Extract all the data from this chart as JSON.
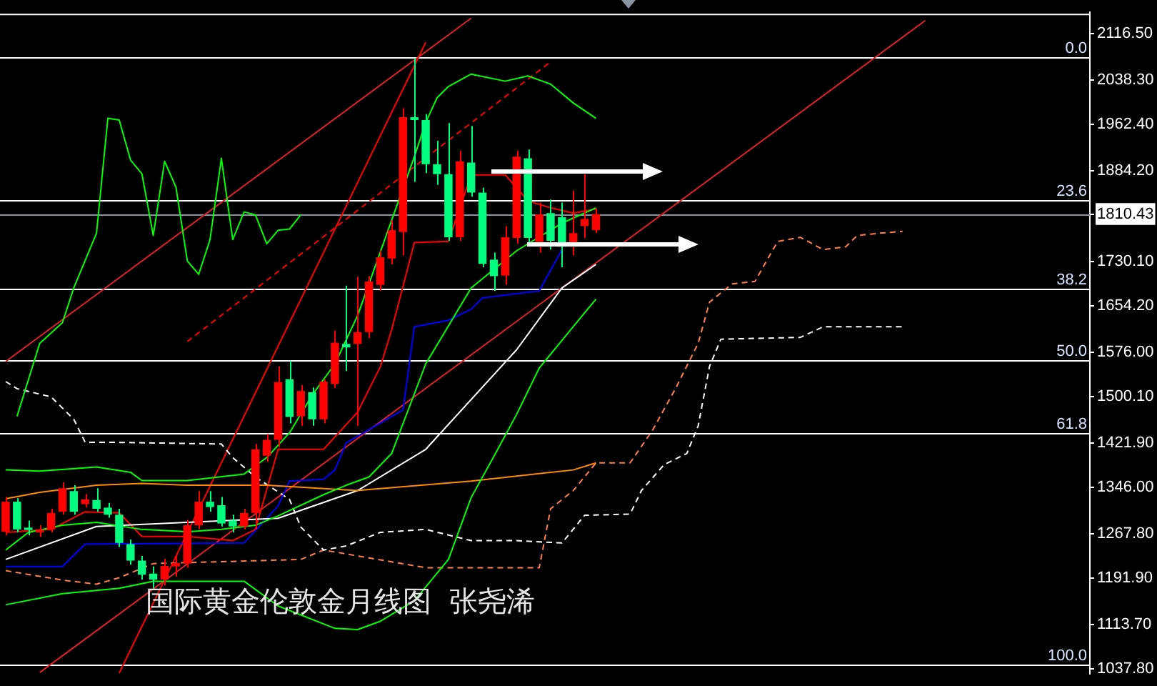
{
  "chart_data": {
    "type": "candlestick",
    "title": "国际黄金伦敦金月线图  张尧浠",
    "categories": [
      null,
      null,
      null,
      null,
      null,
      null,
      null,
      null,
      null,
      null,
      null,
      null,
      null,
      null,
      null,
      null,
      null,
      null,
      null,
      null,
      null,
      null,
      null,
      null,
      null,
      null,
      null,
      null,
      null,
      null,
      null,
      null,
      null,
      null,
      null,
      null,
      null,
      null,
      null,
      null,
      null,
      null,
      null,
      null,
      null,
      null,
      null,
      null,
      null,
      null,
      null,
      null,
      null,
      null,
      null,
      null,
      null,
      null,
      null,
      null,
      null,
      null,
      null,
      null,
      null,
      null,
      null,
      null,
      null,
      null,
      null,
      null,
      null,
      null,
      null,
      null,
      null,
      null,
      null,
      null,
      null,
      null,
      null,
      null,
      null,
      null,
      null,
      null,
      null,
      null,
      null,
      null,
      null,
      null,
      null,
      null
    ],
    "ohlc": [
      [
        1271,
        1330,
        1265,
        1322
      ],
      [
        1322,
        1328,
        1270,
        1275
      ],
      [
        1278,
        1290,
        1265,
        1274
      ],
      [
        1270,
        1282,
        1262,
        1275
      ],
      [
        1275,
        1310,
        1270,
        1303
      ],
      [
        1305,
        1355,
        1300,
        1345
      ],
      [
        1340,
        1350,
        1300,
        1305
      ],
      [
        1318,
        1335,
        1312,
        1326
      ],
      [
        1325,
        1345,
        1305,
        1310
      ],
      [
        1312,
        1320,
        1295,
        1300
      ],
      [
        1300,
        1310,
        1245,
        1252
      ],
      [
        1250,
        1258,
        1215,
        1222
      ],
      [
        1222,
        1230,
        1190,
        1198
      ],
      [
        1200,
        1212,
        1175,
        1190
      ],
      [
        1190,
        1225,
        1180,
        1213
      ],
      [
        1212,
        1230,
        1195,
        1218
      ],
      [
        1217,
        1291,
        1210,
        1282
      ],
      [
        1282,
        1340,
        1275,
        1322
      ],
      [
        1322,
        1340,
        1305,
        1313
      ],
      [
        1316,
        1330,
        1280,
        1285
      ],
      [
        1290,
        1300,
        1270,
        1280
      ],
      [
        1280,
        1310,
        1275,
        1303
      ],
      [
        1303,
        1420,
        1275,
        1411
      ],
      [
        1400,
        1437,
        1390,
        1427
      ],
      [
        1427,
        1552,
        1415,
        1525
      ],
      [
        1530,
        1561,
        1455,
        1466
      ],
      [
        1467,
        1520,
        1451,
        1510
      ],
      [
        1508,
        1516,
        1451,
        1462
      ],
      [
        1462,
        1530,
        1455,
        1526
      ],
      [
        1522,
        1612,
        1515,
        1592
      ],
      [
        1590,
        1689,
        1544,
        1584
      ],
      [
        1590,
        1704,
        1451,
        1610
      ],
      [
        1610,
        1705,
        1600,
        1696
      ],
      [
        1690,
        1748,
        1680,
        1737
      ],
      [
        1735,
        1800,
        1725,
        1783
      ],
      [
        1780,
        1990,
        1740,
        1975
      ],
      [
        1975,
        2075,
        1865,
        1970
      ],
      [
        1970,
        1980,
        1880,
        1895
      ],
      [
        1895,
        1935,
        1860,
        1878
      ],
      [
        1878,
        1965,
        1765,
        1771
      ],
      [
        1771,
        1918,
        1765,
        1900
      ],
      [
        1898,
        1960,
        1840,
        1847
      ],
      [
        1847,
        1855,
        1720,
        1726
      ],
      [
        1733,
        1745,
        1680,
        1705
      ],
      [
        1706,
        1790,
        1690,
        1771
      ],
      [
        1770,
        1918,
        1760,
        1908
      ],
      [
        1905,
        1920,
        1760,
        1770
      ],
      [
        1763,
        1830,
        1745,
        1810
      ],
      [
        1812,
        1835,
        1750,
        1765
      ],
      [
        1805,
        1830,
        1720,
        1755
      ],
      [
        1755,
        1850,
        1740,
        1778
      ],
      [
        1790,
        1878,
        1770,
        1802
      ],
      [
        1783,
        1820,
        1778,
        1810.43
      ],
      null,
      null,
      null,
      null,
      null,
      null,
      null,
      null,
      null,
      null,
      null,
      null,
      null,
      null,
      null,
      null,
      null,
      null,
      null,
      null,
      null,
      null,
      null,
      null,
      null,
      null,
      null,
      null,
      null,
      null,
      null,
      null,
      null,
      null,
      null,
      null,
      null,
      null,
      null,
      null,
      null,
      null,
      null
    ],
    "colors": [
      "#ff0000",
      "#00ff7f",
      "#00ff7f",
      "#ff0000",
      "#ff0000",
      "#ff0000",
      "#00ff7f",
      "#ff0000",
      "#00ff7f",
      "#00ff7f",
      "#00ff7f",
      "#00ff7f",
      "#00ff7f",
      "#00ff7f",
      "#ff0000",
      "#ff0000",
      "#ff0000",
      "#ff0000",
      "#00ff7f",
      "#00ff7f",
      "#00ff7f",
      "#ff0000",
      "#ff0000",
      "#ff0000",
      "#ff0000",
      "#00ff7f",
      "#ff0000",
      "#00ff7f",
      "#ff0000",
      "#ff0000",
      "#00ff7f",
      "#ff0000",
      "#ff0000",
      "#ff0000",
      "#ff0000",
      "#ff0000",
      "#00ff7f",
      "#00ff7f",
      "#00ff7f",
      "#00ff7f",
      "#ff0000",
      "#00ff7f",
      "#00ff7f",
      "#00ff7f",
      "#ff0000",
      "#ff0000",
      "#00ff7f",
      "#ff0000",
      "#00ff7f",
      "#00ff7f",
      "#ff0000",
      "#ff0000",
      "#ff0000",
      null,
      null,
      null,
      null,
      null,
      null,
      null,
      null,
      null,
      null,
      null,
      null,
      null,
      null,
      null,
      null,
      null,
      null,
      null,
      null,
      null,
      null,
      null,
      null,
      null,
      null,
      null,
      null,
      null,
      null,
      null,
      null,
      null,
      null,
      null,
      null,
      null,
      null,
      null,
      null,
      null,
      null,
      null
    ],
    "series": [
      {
        "type": "line",
        "color": "#00ff00",
        "values": [
          null,
          1467,
          null,
          1591,
          null,
          1626,
          1685,
          null,
          1778,
          1973,
          1970,
          1902,
          1879,
          1774,
          1900,
          1856,
          1731,
          1708,
          1767,
          1905,
          1767,
          1814,
          1809,
          1760,
          1783,
          1785,
          1809,
          null,
          null,
          null,
          null,
          null,
          null,
          null,
          null,
          null,
          null,
          null,
          null,
          null,
          null,
          null,
          null,
          null,
          null,
          null,
          null,
          null,
          null,
          null,
          null,
          null,
          null,
          null,
          null,
          null,
          null,
          null,
          null,
          null,
          null,
          null,
          null,
          null,
          null,
          null,
          null,
          null,
          null,
          null,
          null,
          null,
          null,
          null,
          null,
          null,
          null,
          null,
          null,
          null,
          null,
          null,
          null,
          null,
          null,
          null,
          null,
          null,
          null,
          null,
          null,
          null,
          null,
          null,
          null,
          null
        ]
      },
      {
        "type": "line",
        "color": "#00ff00",
        "values": [
          1376,
          null,
          null,
          1374,
          null,
          null,
          null,
          null,
          1381,
          null,
          null,
          1372,
          1358,
          null,
          null,
          null,
          1358,
          null,
          null,
          null,
          null,
          1369,
          null,
          1397,
          null,
          1439,
          null,
          1503,
          null,
          1556,
          null,
          1638,
          null,
          null,
          null,
          null,
          1908,
          1966,
          2008,
          2027,
          null,
          2048,
          null,
          null,
          2036,
          null,
          2045,
          null,
          2031,
          null,
          1999,
          null,
          1973,
          null,
          null,
          null,
          null,
          null,
          null,
          null,
          null,
          null,
          null,
          null,
          null,
          null,
          null,
          null,
          null,
          null,
          null,
          null,
          null,
          null,
          null,
          null,
          null,
          null,
          null,
          null,
          null,
          null,
          null,
          null,
          null,
          null,
          null,
          null,
          null,
          null,
          null,
          null,
          null,
          null,
          null,
          null
        ]
      },
      {
        "type": "line",
        "color": "#00ff00",
        "values": [
          1240,
          null,
          1270,
          null,
          null,
          1282,
          null,
          null,
          1287,
          null,
          null,
          null,
          1275,
          null,
          null,
          null,
          1271,
          null,
          null,
          1275,
          null,
          null,
          1282,
          null,
          1298,
          null,
          null,
          null,
          1334,
          null,
          1350,
          null,
          1364,
          null,
          1404,
          null,
          null,
          1556,
          null,
          null,
          null,
          1685,
          null,
          null,
          null,
          1748,
          null,
          null,
          null,
          1795,
          null,
          null,
          1821,
          null,
          null,
          null,
          null,
          null,
          null,
          null,
          null,
          null,
          null,
          null,
          null,
          null,
          null,
          null,
          null,
          null,
          null,
          null,
          null,
          null,
          null,
          null,
          null,
          null,
          null,
          null,
          null,
          null,
          null,
          null,
          null,
          null,
          null,
          null,
          null,
          null,
          null,
          null,
          null,
          null,
          null,
          null
        ]
      },
      {
        "type": "line",
        "color": "#00ff00",
        "values": [
          1147,
          null,
          null,
          null,
          null,
          1166,
          null,
          null,
          null,
          null,
          1175,
          null,
          null,
          1187,
          null,
          null,
          null,
          null,
          null,
          null,
          null,
          1187,
          null,
          null,
          1145,
          null,
          null,
          null,
          null,
          1107,
          null,
          1105,
          null,
          1119,
          null,
          null,
          1154,
          null,
          null,
          1224,
          null,
          1329,
          null,
          1399,
          null,
          1470,
          null,
          1549,
          null,
          1596,
          null,
          1643,
          1666,
          null,
          null,
          null,
          null,
          null,
          null,
          null,
          null,
          null,
          null,
          null,
          null,
          null,
          null,
          null,
          null,
          null,
          null,
          null,
          null,
          null,
          null,
          null,
          null,
          null,
          null,
          null,
          null,
          null,
          null,
          null,
          null,
          null,
          null,
          null,
          null,
          null,
          null,
          null,
          null,
          null,
          null,
          null
        ]
      },
      {
        "type": "line",
        "color": "#ff8c00",
        "values": [
          1327,
          null,
          null,
          1338,
          null,
          null,
          null,
          null,
          1350,
          null,
          null,
          null,
          1353,
          null,
          null,
          null,
          1350,
          null,
          null,
          null,
          null,
          null,
          null,
          1350,
          null,
          null,
          null,
          null,
          null,
          null,
          null,
          1341,
          null,
          null,
          null,
          null,
          null,
          null,
          null,
          null,
          null,
          1357,
          null,
          null,
          null,
          null,
          null,
          null,
          null,
          null,
          1376,
          null,
          1388,
          null,
          null,
          null,
          null,
          null,
          null,
          null,
          null,
          null,
          null,
          null,
          null,
          null,
          null,
          null,
          null,
          null,
          null,
          null,
          null,
          null,
          null,
          null,
          null,
          null,
          null,
          null,
          null,
          null,
          null,
          null,
          null,
          null,
          null,
          null,
          null,
          null,
          null,
          null,
          null,
          null,
          null,
          null
        ]
      },
      {
        "type": "line",
        "color": "#ffffff",
        "values": [
          1224,
          null,
          null,
          null,
          null,
          null,
          null,
          null,
          1280,
          null,
          null,
          null,
          null,
          null,
          null,
          null,
          1287,
          null,
          null,
          null,
          null,
          null,
          null,
          null,
          1294,
          null,
          null,
          null,
          null,
          null,
          null,
          1341,
          null,
          null,
          null,
          null,
          null,
          1411,
          null,
          null,
          null,
          null,
          null,
          null,
          null,
          1580,
          null,
          null,
          null,
          1685,
          null,
          null,
          1725,
          null,
          null,
          null,
          null,
          null,
          null,
          null,
          null,
          null,
          null,
          null,
          null,
          null,
          null,
          null,
          null,
          null,
          null,
          null,
          null,
          null,
          null,
          null,
          null,
          null,
          null,
          null,
          null,
          null,
          null,
          null,
          null,
          null,
          null,
          null,
          null,
          null,
          null,
          null,
          null,
          null,
          null,
          null
        ]
      },
      {
        "type": "line",
        "color": "#0000ff",
        "values": [
          1212,
          null,
          null,
          null,
          null,
          1212,
          null,
          1250,
          null,
          null,
          null,
          null,
          null,
          null,
          null,
          null,
          null,
          null,
          null,
          null,
          null,
          1252,
          null,
          null,
          1315,
          1357,
          null,
          null,
          1360,
          1376,
          1422,
          null,
          null,
          null,
          null,
          1478,
          1619,
          null,
          null,
          1630,
          null,
          1649,
          1668,
          null,
          null,
          null,
          null,
          1680,
          null,
          1750,
          null,
          null,
          null,
          null,
          null,
          null,
          null,
          null,
          null,
          null,
          null,
          null,
          null,
          null,
          null,
          null,
          null,
          null,
          null,
          null,
          null,
          null,
          null,
          null,
          null,
          null,
          null,
          null,
          null,
          null,
          null,
          null,
          null,
          null,
          null,
          null,
          null,
          null,
          null,
          null,
          null,
          null,
          null,
          null,
          null,
          null
        ]
      },
      {
        "type": "line",
        "color": "#ff0000",
        "values": [
          1270,
          null,
          null,
          null,
          1275,
          null,
          null,
          1305,
          null,
          null,
          1303,
          null,
          1263,
          null,
          null,
          null,
          1263,
          null,
          null,
          null,
          1256,
          null,
          1275,
          null,
          1411,
          null,
          null,
          null,
          1411,
          null,
          null,
          1474,
          null,
          1551,
          1614,
          null,
          1762,
          null,
          null,
          1764,
          null,
          1877,
          null,
          null,
          1877,
          null,
          1833,
          null,
          1821,
          null,
          1812,
          null,
          1819,
          null,
          null,
          null,
          null,
          null,
          null,
          null,
          null,
          null,
          null,
          null,
          null,
          null,
          null,
          null,
          null,
          null,
          null,
          null,
          null,
          null,
          null,
          null,
          null,
          null,
          null,
          null,
          null,
          null,
          null,
          null,
          null,
          null,
          null,
          null,
          null,
          null,
          null,
          null,
          null,
          null,
          null,
          null
        ]
      },
      {
        "type": "line",
        "color": "#ffffff",
        "line_style": "dashed",
        "values": [
          1526,
          1514,
          null,
          null,
          1500,
          null,
          1462,
          1423,
          null,
          1423,
          null,
          null,
          null,
          null,
          null,
          null,
          null,
          null,
          null,
          1420,
          1397,
          null,
          1364,
          null,
          null,
          1326,
          1279,
          null,
          1240,
          null,
          1247,
          null,
          null,
          1270,
          null,
          null,
          null,
          1275,
          null,
          null,
          null,
          1256,
          null,
          null,
          null,
          1256,
          null,
          null,
          null,
          1252,
          null,
          1299,
          null,
          null,
          null,
          1301,
          1341,
          null,
          1385,
          null,
          1404,
          1451,
          1552,
          1598,
          null,
          null,
          null,
          null,
          null,
          null,
          1601,
          null,
          1619,
          null,
          null,
          null,
          null,
          null,
          null,
          1619,
          null,
          null,
          null,
          null,
          null,
          null,
          null,
          null,
          null,
          null,
          null,
          null,
          null,
          null,
          null,
          null
        ]
      },
      {
        "type": "line",
        "color": "#ff7f50",
        "line_style": "dashed",
        "values": [
          1205,
          null,
          null,
          null,
          null,
          1189,
          null,
          null,
          1182,
          null,
          1193,
          null,
          null,
          1217,
          null,
          null,
          null,
          null,
          null,
          null,
          null,
          null,
          null,
          null,
          null,
          null,
          1224,
          null,
          1240,
          null,
          null,
          null,
          null,
          null,
          null,
          null,
          null,
          1210,
          null,
          null,
          null,
          null,
          null,
          null,
          null,
          null,
          null,
          1210,
          1310,
          null,
          1341,
          null,
          1388,
          null,
          null,
          1388,
          null,
          1444,
          null,
          1514,
          null,
          1591,
          1661,
          null,
          1692,
          null,
          1696,
          null,
          1764,
          null,
          1771,
          null,
          1750,
          null,
          1755,
          1774,
          null,
          1778,
          null,
          1781,
          null,
          null,
          null,
          null,
          null,
          null,
          null,
          null,
          null,
          null,
          null,
          null,
          null,
          null,
          null,
          null
        ]
      },
      {
        "type": "line",
        "color": "#e0202a",
        "values": [
          1560,
          null,
          null,
          null,
          null,
          null,
          null,
          null,
          null,
          null,
          null,
          null,
          null,
          null,
          null,
          null,
          null,
          null,
          null,
          null,
          null,
          null,
          null,
          null,
          null,
          null,
          null,
          null,
          null,
          null,
          null,
          null,
          null,
          null,
          null,
          null,
          null,
          null,
          null,
          null,
          null,
          2143,
          null,
          null,
          null,
          null,
          null,
          null,
          null,
          null,
          null,
          null,
          null,
          null,
          null,
          null,
          null,
          null,
          null,
          null,
          null,
          null,
          null,
          null,
          null,
          null,
          null,
          null,
          null,
          null,
          null,
          null,
          null,
          null,
          null,
          null,
          null,
          null,
          null,
          null,
          null,
          null,
          null,
          null,
          null,
          null,
          null,
          null,
          null,
          null,
          null,
          null,
          null,
          null,
          null,
          null
        ]
      },
      {
        "type": "line",
        "color": "#e0202a",
        "values": [
          null,
          null,
          null,
          1032,
          null,
          null,
          null,
          null,
          null,
          null,
          null,
          null,
          null,
          null,
          null,
          null,
          null,
          null,
          null,
          null,
          null,
          null,
          null,
          null,
          null,
          null,
          null,
          null,
          null,
          null,
          null,
          null,
          null,
          null,
          null,
          null,
          null,
          null,
          null,
          null,
          null,
          null,
          null,
          null,
          null,
          null,
          null,
          null,
          null,
          null,
          null,
          null,
          null,
          null,
          null,
          null,
          null,
          null,
          null,
          null,
          null,
          null,
          null,
          null,
          null,
          null,
          null,
          null,
          null,
          null,
          null,
          null,
          null,
          null,
          null,
          null,
          null,
          null,
          null,
          null,
          null,
          2139,
          null,
          null,
          null,
          null,
          null,
          null,
          null,
          null,
          null,
          null,
          null,
          null,
          null,
          null
        ]
      },
      {
        "type": "line",
        "color": "#ff0000",
        "values": [
          null,
          null,
          null,
          null,
          null,
          null,
          null,
          null,
          null,
          null,
          1031,
          null,
          null,
          null,
          null,
          null,
          null,
          null,
          null,
          null,
          null,
          null,
          null,
          null,
          null,
          null,
          null,
          null,
          null,
          null,
          null,
          null,
          null,
          null,
          null,
          null,
          null,
          2102,
          null,
          null,
          null,
          null,
          null,
          null,
          null,
          null,
          null,
          null,
          null,
          null,
          null,
          null,
          null,
          null,
          null,
          null,
          null,
          null,
          null,
          null,
          null,
          null,
          null,
          null,
          null,
          null,
          null,
          null,
          null,
          null,
          null,
          null,
          null,
          null,
          null,
          null,
          null,
          null,
          null,
          null,
          null,
          null,
          null,
          null,
          null,
          null,
          null,
          null,
          null,
          null,
          null,
          null,
          null,
          null,
          null,
          null
        ]
      },
      {
        "type": "line",
        "color": "#ff0000",
        "line_style": "dashed",
        "values": [
          null,
          null,
          null,
          null,
          null,
          null,
          null,
          null,
          null,
          null,
          null,
          null,
          null,
          null,
          null,
          null,
          1594,
          null,
          null,
          null,
          null,
          null,
          null,
          null,
          null,
          null,
          null,
          null,
          null,
          null,
          null,
          null,
          null,
          null,
          null,
          null,
          null,
          null,
          null,
          null,
          null,
          null,
          null,
          null,
          null,
          null,
          null,
          null,
          2069,
          null,
          null,
          null,
          null,
          null,
          null,
          null,
          null,
          null,
          null,
          null,
          null,
          null,
          null,
          null,
          null,
          null,
          null,
          null,
          null,
          null,
          null,
          null,
          null,
          null,
          null,
          null,
          null,
          null,
          null,
          null,
          null,
          null,
          null,
          null,
          null,
          null,
          null,
          null,
          null,
          null,
          null,
          null,
          null,
          null,
          null,
          null
        ]
      }
    ],
    "marker": "none",
    "ylim": [
      1030,
      2153
    ],
    "yticks": [
      {
        "value": 2116.5,
        "label": "2116.50"
      },
      {
        "value": 2038.3,
        "label": "2038.30"
      },
      {
        "value": 1962.4,
        "label": "1962.40"
      },
      {
        "value": 1884.2,
        "label": "1884.20"
      },
      {
        "value": 1810.43,
        "label": "1810.43"
      },
      {
        "value": 1730.1,
        "label": "1730.10"
      },
      {
        "value": 1654.2,
        "label": "1654.20"
      },
      {
        "value": 1576,
        "label": "1576.00"
      },
      {
        "value": 1500.1,
        "label": "1500.10"
      },
      {
        "value": 1421.9,
        "label": "1421.90"
      },
      {
        "value": 1346,
        "label": "1346.00"
      },
      {
        "value": 1267.8,
        "label": "1267.80"
      },
      {
        "value": 1191.9,
        "label": "1191.90"
      },
      {
        "value": 1113.7,
        "label": "1113.70"
      },
      {
        "value": 1037.8,
        "label": "1037.80"
      }
    ],
    "y2lim": [
      101.55,
      -7.37
    ],
    "ref_lines": [
      {
        "axis": "y2",
        "value": 0,
        "label": "0.0",
        "color": "#ffffff"
      },
      {
        "axis": "y2",
        "value": 23.6,
        "label": "23.6",
        "color": "#ffffff"
      },
      {
        "axis": "y2",
        "value": 38.2,
        "label": "38.2",
        "color": "#ffffff"
      },
      {
        "axis": "y2",
        "value": 50,
        "label": "50.0",
        "color": "#ffffff"
      },
      {
        "axis": "y2",
        "value": 61.8,
        "label": "61.8",
        "color": "#ffffff"
      },
      {
        "axis": "y2",
        "value": 100,
        "label": "100.0",
        "color": "#ffffff"
      },
      {
        "axis": "y",
        "value": 1810.43,
        "color": "#8a93a0"
      }
    ],
    "tick_labels": "y"
  }
}
